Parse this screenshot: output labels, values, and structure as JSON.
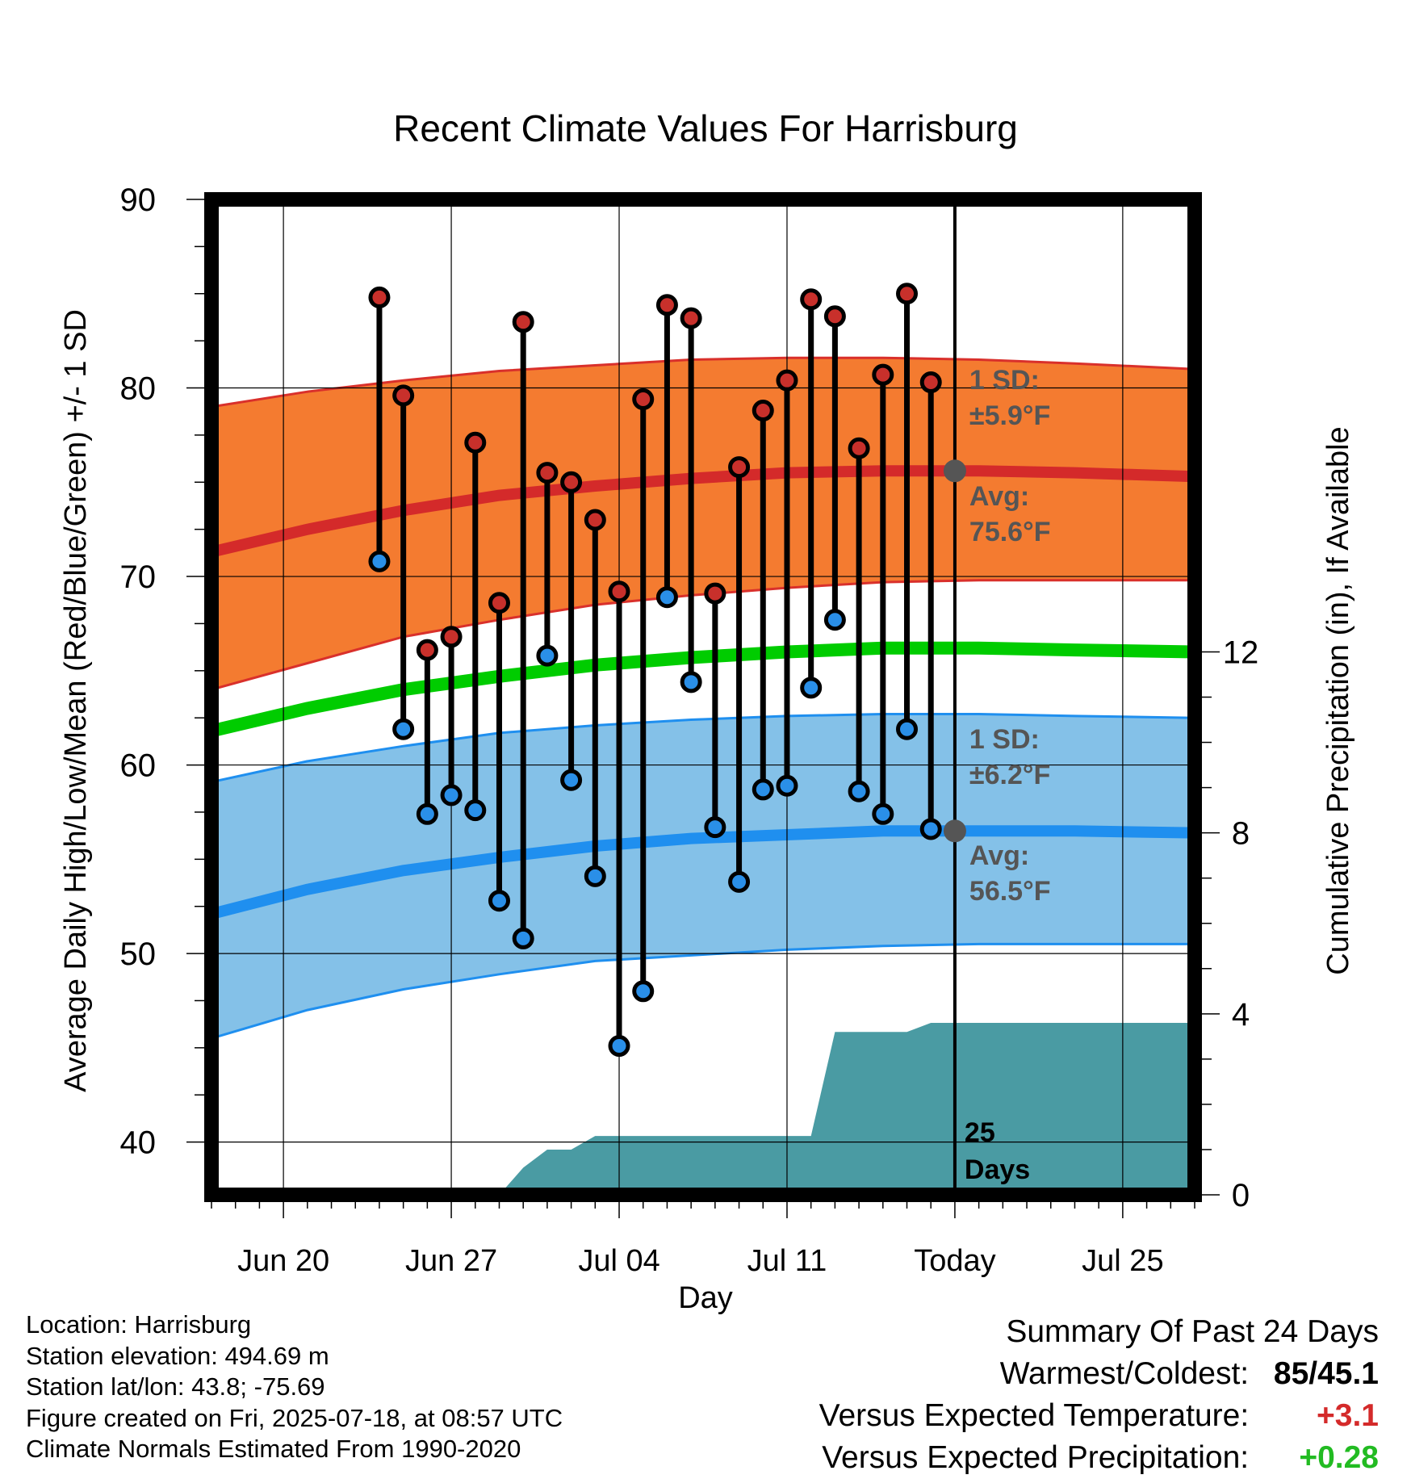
{
  "chart_data": {
    "type": "line",
    "title": "Recent Climate Values For Harrisburg",
    "xlabel": "Day",
    "ylabel": "Average Daily High/Low/Mean (Red/Blue/Green) +/- 1 SD",
    "y2label": "Cumulative Precipitation (in), If Available",
    "ylim": [
      37.2,
      90
    ],
    "y2lim": [
      0,
      22
    ],
    "y_ticks": [
      "40",
      "50",
      "60",
      "70",
      "80",
      "90"
    ],
    "y2_ticks": [
      "0",
      "4",
      "8",
      "12"
    ],
    "x_start": "2025-06-17",
    "x_end": "2025-07-28",
    "x_ticks": [
      {
        "date": "2025-06-20",
        "label": "Jun 20"
      },
      {
        "date": "2025-06-27",
        "label": "Jun 27"
      },
      {
        "date": "2025-07-04",
        "label": "Jul 04"
      },
      {
        "date": "2025-07-11",
        "label": "Jul 11"
      },
      {
        "date": "2025-07-18",
        "label": "Today"
      },
      {
        "date": "2025-07-25",
        "label": "Jul 25"
      }
    ],
    "today": "2025-07-18",
    "grid": true,
    "normals": {
      "dates": [
        "2025-06-17",
        "2025-06-21",
        "2025-06-25",
        "2025-06-29",
        "2025-07-03",
        "2025-07-07",
        "2025-07-11",
        "2025-07-15",
        "2025-07-19",
        "2025-07-23",
        "2025-07-28"
      ],
      "high_upper": [
        79.0,
        79.8,
        80.4,
        80.9,
        81.2,
        81.5,
        81.6,
        81.6,
        81.5,
        81.3,
        81.0
      ],
      "high_avg": [
        71.3,
        72.5,
        73.5,
        74.3,
        74.8,
        75.2,
        75.5,
        75.6,
        75.6,
        75.5,
        75.3
      ],
      "high_lower": [
        64.0,
        65.4,
        66.8,
        67.7,
        68.5,
        69.0,
        69.4,
        69.7,
        69.8,
        69.8,
        69.8
      ],
      "mean": [
        61.8,
        63.0,
        64.0,
        64.7,
        65.3,
        65.7,
        66.0,
        66.2,
        66.2,
        66.1,
        66.0
      ],
      "low_upper": [
        59.1,
        60.2,
        61.0,
        61.7,
        62.1,
        62.4,
        62.6,
        62.7,
        62.7,
        62.6,
        62.5
      ],
      "low_avg": [
        52.1,
        53.4,
        54.4,
        55.1,
        55.7,
        56.1,
        56.3,
        56.5,
        56.5,
        56.5,
        56.4
      ],
      "low_lower": [
        45.5,
        47.0,
        48.1,
        48.9,
        49.6,
        49.9,
        50.2,
        50.4,
        50.5,
        50.5,
        50.5
      ]
    },
    "series": [
      {
        "name": "High",
        "dates": [
          "2025-06-24",
          "2025-06-25",
          "2025-06-26",
          "2025-06-27",
          "2025-06-28",
          "2025-06-29",
          "2025-06-30",
          "2025-07-01",
          "2025-07-02",
          "2025-07-03",
          "2025-07-04",
          "2025-07-05",
          "2025-07-06",
          "2025-07-07",
          "2025-07-08",
          "2025-07-09",
          "2025-07-10",
          "2025-07-11",
          "2025-07-12",
          "2025-07-13",
          "2025-07-14",
          "2025-07-15",
          "2025-07-16",
          "2025-07-17"
        ],
        "values": [
          84.8,
          79.6,
          66.1,
          66.8,
          77.1,
          68.6,
          83.5,
          75.5,
          75.0,
          73.0,
          69.2,
          79.4,
          84.4,
          83.7,
          69.1,
          75.8,
          78.8,
          80.4,
          84.7,
          83.8,
          76.8,
          80.7,
          85.0,
          80.3
        ]
      },
      {
        "name": "Low",
        "dates": [
          "2025-06-24",
          "2025-06-25",
          "2025-06-26",
          "2025-06-27",
          "2025-06-28",
          "2025-06-29",
          "2025-06-30",
          "2025-07-01",
          "2025-07-02",
          "2025-07-03",
          "2025-07-04",
          "2025-07-05",
          "2025-07-06",
          "2025-07-07",
          "2025-07-08",
          "2025-07-09",
          "2025-07-10",
          "2025-07-11",
          "2025-07-12",
          "2025-07-13",
          "2025-07-14",
          "2025-07-15",
          "2025-07-16",
          "2025-07-17"
        ],
        "values": [
          70.8,
          61.9,
          57.4,
          58.4,
          57.6,
          52.8,
          50.8,
          65.8,
          59.2,
          54.1,
          45.1,
          48.0,
          68.9,
          64.4,
          56.7,
          53.8,
          58.7,
          58.9,
          64.1,
          67.7,
          58.6,
          57.4,
          61.9,
          56.6
        ]
      },
      {
        "name": "Cumulative Precipitation",
        "dates": [
          "2025-06-28",
          "2025-06-29",
          "2025-06-30",
          "2025-07-01",
          "2025-07-02",
          "2025-07-03",
          "2025-07-04",
          "2025-07-05",
          "2025-07-06",
          "2025-07-07",
          "2025-07-08",
          "2025-07-09",
          "2025-07-10",
          "2025-07-11",
          "2025-07-12",
          "2025-07-13",
          "2025-07-14",
          "2025-07-15",
          "2025-07-16",
          "2025-07-17",
          "2025-07-28"
        ],
        "values": [
          0,
          0,
          0.6,
          1.0,
          1.0,
          1.3,
          1.3,
          1.3,
          1.3,
          1.3,
          1.3,
          1.3,
          1.3,
          1.3,
          1.3,
          3.6,
          3.6,
          3.6,
          3.6,
          3.8,
          3.8
        ]
      }
    ],
    "annotations": {
      "high_sd_line1": "1 SD:",
      "high_sd_line2": "±5.9°F",
      "high_avg_line1": "Avg:",
      "high_avg_line2": "75.6°F",
      "low_sd_line1": "1 SD:",
      "low_sd_line2": "±6.2°F",
      "low_avg_line1": "Avg:",
      "low_avg_line2": "56.5°F",
      "days_line1": "25",
      "days_line2": "Days"
    },
    "colors": {
      "high_band": "#f47b30",
      "high_avg": "#d42a2a",
      "low_band": "#84c1e8",
      "low_avg": "#1f8fef",
      "mean": "#00cc00",
      "precip": "#4a9ba3",
      "high_dot": "#c8302b",
      "low_dot": "#2a8fe8",
      "annotation": "#555555"
    }
  },
  "footer_left": {
    "location": "Location: Harrisburg",
    "elevation": "Station elevation: 494.69 m",
    "latlon": "Station lat/lon: 43.8; -75.69",
    "created": "Figure created on Fri, 2025-07-18, at 08:57 UTC",
    "normals": "Climate Normals Estimated From 1990-2020"
  },
  "summary": {
    "heading": "Summary Of Past 24 Days",
    "warmest_label": "Warmest/Coldest:",
    "warmest_value": "85/45.1",
    "temp_label": "Versus Expected Temperature:",
    "temp_value": "+3.1",
    "temp_color": "#d42a2a",
    "precip_label": "Versus Expected Precipitation:",
    "precip_value": "+0.28",
    "precip_color": "#22bb22"
  }
}
